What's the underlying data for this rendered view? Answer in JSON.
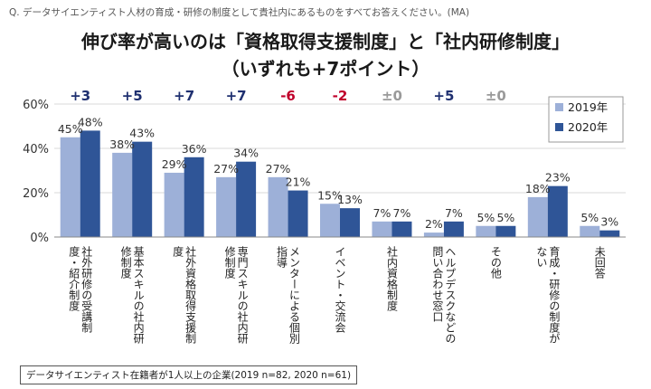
{
  "question": "Q. データサイエンティスト人材の育成・研修の制度として貴社内にあるものをすべてお答えください。(MA)",
  "title_line1": "伸び率が高いのは「資格取得支援制度」と「社内研修制度」",
  "title_line2": "（いずれも+7ポイント）",
  "note": "データサイエンティスト在籍者が1人以上の企業(2019 n=82, 2020 n=61)",
  "colors": {
    "s2019": "#9DB0D8",
    "s2020": "#2F5597",
    "positive": "#1F3070",
    "negative": "#C0002B",
    "neutral": "#9A9A9A"
  },
  "chart_data": {
    "type": "bar",
    "ylim": [
      0,
      60
    ],
    "yticks": [
      "0%",
      "20%",
      "40%",
      "60%"
    ],
    "categories": [
      [
        "社外研修の受講制",
        "度・紹介制度"
      ],
      [
        "基本スキルの社内研",
        "修制度"
      ],
      [
        "社外資格取得支援制",
        "度"
      ],
      [
        "専門スキルの社内研",
        "修制度"
      ],
      [
        "メンターによる個別",
        "指導"
      ],
      [
        "イベント・交流会"
      ],
      [
        "社内資格制度"
      ],
      [
        "ヘルプデスクなどの",
        "問い合わせ窓口"
      ],
      [
        "その他"
      ],
      [
        "育成・研修の制度が",
        "ない"
      ],
      [
        "未回答"
      ]
    ],
    "series": [
      {
        "name": "2019年",
        "values": [
          45,
          38,
          29,
          27,
          27,
          15,
          7,
          2,
          5,
          18,
          5
        ],
        "labels": [
          "45%",
          "38%",
          "29%",
          "27%",
          "27%",
          "15%",
          "7%",
          "2%",
          "5%",
          "18%",
          "5%"
        ]
      },
      {
        "name": "2020年",
        "values": [
          48,
          43,
          36,
          34,
          21,
          13,
          7,
          7,
          5,
          23,
          3
        ],
        "labels": [
          "48%",
          "43%",
          "36%",
          "34%",
          "21%",
          "13%",
          "7%",
          "7%",
          "5%",
          "23%",
          "3%"
        ]
      }
    ],
    "changes": [
      "+3",
      "+5",
      "+7",
      "+7",
      "-6",
      "-2",
      "±0",
      "+5",
      "±0",
      "",
      ""
    ],
    "legend": [
      "2019年",
      "2020年"
    ]
  }
}
